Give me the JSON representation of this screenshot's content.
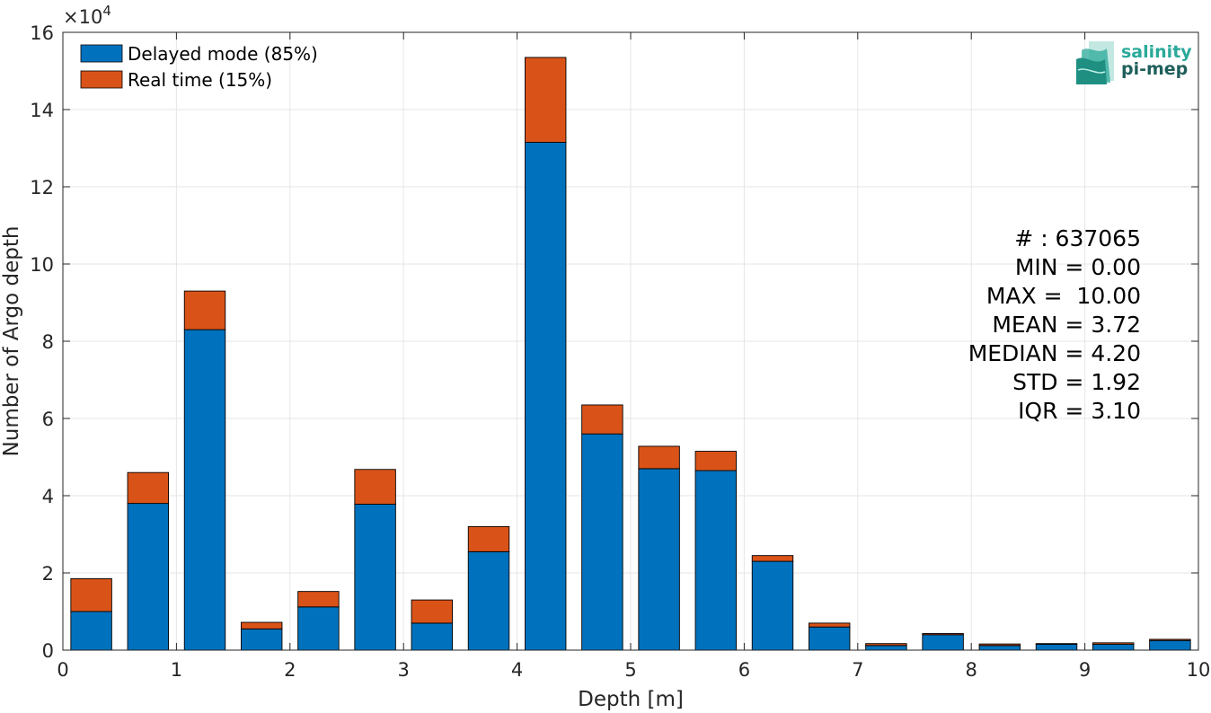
{
  "chart_data": {
    "type": "bar",
    "stacked": true,
    "xlabel": "Depth [m]",
    "ylabel": "Number of Argo depth",
    "y_exponent_label": "×10",
    "y_exponent_power": "4",
    "xlim": [
      0,
      10
    ],
    "ylim": [
      0,
      160000
    ],
    "grid": true,
    "legend_position": "top-left",
    "bin_width": 0.5,
    "x": [
      0.25,
      0.75,
      1.25,
      1.75,
      2.25,
      2.75,
      3.25,
      3.75,
      4.25,
      4.75,
      5.25,
      5.75,
      6.25,
      6.75,
      7.25,
      7.75,
      8.25,
      8.75,
      9.25,
      9.75
    ],
    "series": [
      {
        "name": "Delayed mode (85%)",
        "color": "#0072BD",
        "values": [
          10000,
          38000,
          83000,
          5500,
          11200,
          37800,
          7000,
          25500,
          131500,
          56000,
          47000,
          46500,
          23000,
          6000,
          1200,
          4000,
          1200,
          1500,
          1500,
          2500
        ]
      },
      {
        "name": "Real time (15%)",
        "color": "#D95319",
        "values": [
          8500,
          8000,
          10000,
          1700,
          4000,
          9000,
          6000,
          6500,
          22000,
          7500,
          5800,
          5000,
          1500,
          1000,
          500,
          300,
          400,
          200,
          400,
          300
        ]
      }
    ],
    "x_ticks": [
      "0",
      "1",
      "2",
      "3",
      "4",
      "5",
      "6",
      "7",
      "8",
      "9",
      "10"
    ],
    "y_ticks": [
      "0",
      "2",
      "4",
      "6",
      "8",
      "10",
      "12",
      "14",
      "16"
    ],
    "stats": [
      "# : 637065",
      "MIN = 0.00",
      "MAX =  10.00",
      "MEAN = 3.72",
      "MEDIAN = 4.20",
      "STD = 1.92",
      "IQR = 3.10"
    ]
  },
  "logo": {
    "line1": "salinity",
    "line2": "pi-mep",
    "icon": "salinity-wave-logo",
    "color": "#2aa99a"
  }
}
